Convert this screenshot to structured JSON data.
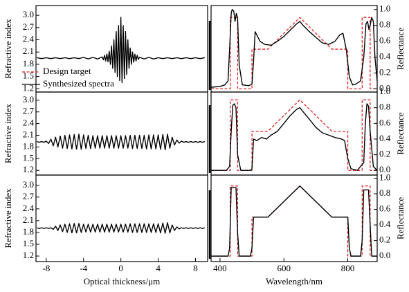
{
  "chart_data": [
    {
      "type": "line",
      "ylabel": "Refractive index",
      "xlim": [
        -9.1,
        9.3
      ],
      "ylim": [
        1.12,
        3.24
      ],
      "yticks": [
        1.2,
        1.5,
        1.8,
        2.1,
        2.4,
        2.7,
        {
          "value": 3,
          "label": "3.0"
        }
      ],
      "x": [
        -9,
        -8.5,
        -8,
        -7.5,
        -7,
        -6.5,
        -6,
        -5.5,
        -5,
        -4.5,
        -4,
        -3.5,
        -3,
        -2.5,
        -2,
        -1.875,
        -1.75,
        -1.625,
        -1.5,
        -1.375,
        -1.25,
        -1.125,
        -1,
        -0.875,
        -0.75,
        -0.625,
        -0.5,
        -0.375,
        -0.25,
        -0.125,
        0,
        0.125,
        0.25,
        0.375,
        0.5,
        0.625,
        0.75,
        0.875,
        1,
        1.125,
        1.25,
        1.375,
        1.5,
        1.625,
        1.75,
        1.875,
        2,
        2.5,
        3,
        3.5,
        4,
        4.5,
        5,
        5.5,
        6,
        6.5,
        7,
        7.5,
        8,
        8.5,
        9
      ],
      "series": [
        {
          "color": "#000000",
          "values": [
            1.96,
            1.94,
            1.96,
            1.94,
            1.96,
            1.94,
            1.96,
            1.94,
            1.96,
            1.94,
            1.97,
            1.93,
            1.97,
            1.93,
            1.98,
            1.91,
            2.02,
            1.88,
            2.05,
            1.86,
            2.12,
            1.8,
            2.25,
            1.7,
            2.4,
            1.6,
            2.6,
            1.5,
            2.75,
            1.4,
            2.95,
            1.35,
            2.75,
            1.45,
            2.6,
            1.55,
            2.4,
            1.7,
            2.2,
            1.8,
            2.1,
            1.85,
            2.05,
            1.88,
            2.02,
            1.92,
            1.97,
            1.93,
            1.97,
            1.93,
            1.96,
            1.94,
            1.96,
            1.94,
            1.96,
            1.94,
            1.96,
            1.94,
            1.96,
            1.94,
            1.96
          ]
        }
      ]
    },
    {
      "type": "line",
      "ylabel": "Reflectance",
      "xlim": [
        372,
        892
      ],
      "ylim": [
        -0.04,
        1.05
      ],
      "yticks": [
        {
          "value": 0,
          "label": "0.0"
        },
        0.2,
        0.4,
        0.6,
        0.8,
        {
          "value": 1,
          "label": "1.0"
        }
      ],
      "legend": "lower left",
      "series": [
        {
          "name": "Design target",
          "color": "#e02020",
          "style": "dashed",
          "x": [
            372,
            432,
            432,
            455,
            455,
            500,
            500,
            550,
            650,
            750,
            800,
            800,
            845,
            845,
            870,
            870,
            892
          ],
          "values": [
            0,
            0,
            0.9,
            0.9,
            0,
            0,
            0.5,
            0.5,
            0.9,
            0.5,
            0.5,
            0,
            0,
            0.9,
            0.9,
            0,
            0
          ]
        },
        {
          "name": "Synthesized spectra",
          "color": "#000000",
          "style": "solid",
          "x": [
            372,
            400,
            415,
            425,
            430,
            435,
            438,
            443,
            447,
            451,
            455,
            460,
            470,
            490,
            500,
            505,
            510,
            515,
            525,
            540,
            560,
            580,
            600,
            620,
            640,
            650,
            660,
            680,
            700,
            720,
            740,
            760,
            775,
            785,
            795,
            805,
            815,
            825,
            840,
            850,
            857,
            862,
            866,
            870,
            875,
            880,
            885,
            892
          ],
          "values": [
            0.02,
            0.03,
            0.05,
            0.1,
            0.5,
            0.95,
            1.0,
            0.98,
            0.85,
            0.95,
            0.9,
            0.3,
            0.05,
            0.04,
            0.06,
            0.35,
            0.72,
            0.68,
            0.6,
            0.56,
            0.55,
            0.6,
            0.66,
            0.74,
            0.82,
            0.85,
            0.8,
            0.72,
            0.65,
            0.58,
            0.56,
            0.6,
            0.68,
            0.7,
            0.5,
            0.15,
            0.05,
            0.06,
            0.1,
            0.4,
            0.82,
            0.85,
            0.75,
            0.8,
            0.9,
            0.85,
            0.4,
            0.1
          ]
        }
      ]
    },
    {
      "type": "line",
      "ylabel": "Refractive index",
      "xlim": [
        -9.1,
        9.3
      ],
      "ylim": [
        1.08,
        3.21
      ],
      "yticks": [
        1.2,
        1.5,
        1.8,
        2.1,
        2.4,
        2.7,
        {
          "value": 3,
          "label": "3.0"
        }
      ],
      "x": [
        -9,
        -8.75,
        -8.5,
        -8.25,
        -8,
        -7.75,
        -7.5,
        -7.25,
        -7,
        -6.75,
        -6.5,
        -6.25,
        -6,
        -5.75,
        -5.5,
        -5.25,
        -5,
        -4.75,
        -4.5,
        -4.25,
        -4,
        -3.75,
        -3.5,
        -3.25,
        -3,
        -2.75,
        -2.5,
        -2.25,
        -2,
        -1.75,
        -1.5,
        -1.25,
        -1,
        -0.75,
        -0.5,
        -0.25,
        0,
        0.25,
        0.5,
        0.75,
        1,
        1.25,
        1.5,
        1.75,
        2,
        2.25,
        2.5,
        2.75,
        3,
        3.25,
        3.5,
        3.75,
        4,
        4.25,
        4.5,
        4.75,
        5,
        5.25,
        5.5,
        5.75,
        6,
        6.25,
        6.5,
        6.75,
        7,
        7.25,
        7.5,
        7.75,
        8,
        8.25,
        8.5,
        8.75,
        9
      ],
      "series": [
        {
          "color": "#000000",
          "values": [
            1.94,
            1.92,
            1.94,
            1.92,
            1.95,
            1.89,
            2.0,
            1.83,
            2.05,
            1.8,
            2.08,
            1.77,
            2.1,
            1.76,
            2.11,
            1.75,
            2.12,
            1.74,
            2.13,
            1.74,
            2.11,
            1.76,
            2.1,
            1.76,
            2.09,
            1.77,
            2.09,
            1.77,
            2.09,
            1.77,
            2.09,
            1.77,
            2.09,
            1.77,
            2.09,
            1.77,
            2.09,
            1.77,
            2.09,
            1.77,
            2.1,
            1.76,
            2.1,
            1.76,
            2.1,
            1.76,
            2.1,
            1.75,
            2.11,
            1.75,
            2.11,
            1.75,
            2.11,
            1.74,
            2.12,
            1.73,
            2.13,
            1.77,
            2.05,
            1.85,
            1.98,
            1.9,
            1.95,
            1.92,
            1.94,
            1.92,
            1.94,
            1.92,
            1.94,
            1.92,
            1.94,
            1.92,
            1.94
          ]
        }
      ]
    },
    {
      "type": "line",
      "ylabel": "Reflectance",
      "xlim": [
        372,
        892
      ],
      "ylim": [
        -0.06,
        1.0
      ],
      "yticks": [
        {
          "value": 0,
          "label": "0.0"
        },
        0.2,
        0.4,
        0.6,
        0.8,
        {
          "value": 1,
          "label": "1.0"
        }
      ],
      "series": [
        {
          "color": "#e02020",
          "style": "dashed",
          "x": [
            372,
            432,
            432,
            455,
            455,
            500,
            500,
            550,
            650,
            750,
            800,
            800,
            845,
            845,
            870,
            870,
            892
          ],
          "values": [
            0,
            0,
            0.9,
            0.9,
            0,
            0,
            0.5,
            0.5,
            0.9,
            0.5,
            0.5,
            0,
            0,
            0.9,
            0.9,
            0,
            0
          ]
        },
        {
          "color": "#000000",
          "style": "solid",
          "x": [
            372,
            420,
            430,
            435,
            440,
            445,
            450,
            455,
            465,
            495,
            500,
            505,
            515,
            530,
            545,
            560,
            580,
            600,
            620,
            640,
            650,
            660,
            680,
            700,
            720,
            740,
            760,
            780,
            790,
            800,
            810,
            830,
            850,
            855,
            860,
            865,
            870,
            880,
            892
          ],
          "values": [
            0,
            0,
            0.05,
            0.5,
            0.83,
            0.85,
            0.8,
            0.2,
            0,
            0,
            0.02,
            0.4,
            0.38,
            0.42,
            0.4,
            0.45,
            0.5,
            0.6,
            0.7,
            0.78,
            0.8,
            0.75,
            0.65,
            0.55,
            0.48,
            0.45,
            0.42,
            0.4,
            0.38,
            0.15,
            0.02,
            0,
            0.1,
            0.6,
            0.85,
            0.82,
            0.5,
            0.05,
            0
          ]
        }
      ]
    },
    {
      "type": "line",
      "ylabel": "Refractive index",
      "xlabel": "Optical thickness/μm",
      "xlim": [
        -9.1,
        9.3
      ],
      "ylim": [
        1.06,
        3.26
      ],
      "xticks": [
        -8,
        -4,
        0,
        4,
        8
      ],
      "yticks": [
        1.2,
        1.5,
        1.8,
        2.1,
        2.4,
        2.7,
        {
          "value": 3,
          "label": "3.0"
        }
      ],
      "x": [
        -9,
        -8.75,
        -8.5,
        -8.25,
        -8,
        -7.75,
        -7.5,
        -7.25,
        -7,
        -6.75,
        -6.5,
        -6.25,
        -6,
        -5.75,
        -5.5,
        -5.25,
        -5,
        -4.75,
        -4.5,
        -4.25,
        -4,
        -3.75,
        -3.5,
        -3.25,
        -3,
        -2.75,
        -2.5,
        -2.25,
        -2,
        -1.75,
        -1.5,
        -1.25,
        -1,
        -0.75,
        -0.5,
        -0.25,
        0,
        0.25,
        0.5,
        0.75,
        1,
        1.25,
        1.5,
        1.75,
        2,
        2.25,
        2.5,
        2.75,
        3,
        3.25,
        3.5,
        3.75,
        4,
        4.25,
        4.5,
        4.75,
        5,
        5.25,
        5.5,
        5.75,
        6,
        6.25,
        6.5,
        6.75,
        7,
        7.25,
        7.5,
        7.75,
        8,
        8.25,
        8.5,
        8.75,
        9
      ],
      "series": [
        {
          "color": "#000000",
          "values": [
            1.92,
            1.9,
            1.92,
            1.9,
            1.92,
            1.9,
            1.92,
            1.88,
            1.96,
            1.85,
            1.99,
            1.82,
            2.01,
            1.8,
            2.02,
            1.79,
            2.03,
            1.79,
            2.03,
            1.8,
            2.01,
            1.81,
            2.01,
            1.81,
            2.01,
            1.81,
            2.01,
            1.81,
            2.01,
            1.81,
            2.01,
            1.81,
            2.01,
            1.81,
            2.01,
            1.81,
            2.01,
            1.81,
            2.01,
            1.81,
            2.02,
            1.8,
            2.02,
            1.8,
            2.02,
            1.8,
            2.02,
            1.8,
            2.02,
            1.8,
            2.02,
            1.8,
            2.02,
            1.79,
            2.04,
            1.78,
            2.05,
            1.79,
            1.99,
            1.85,
            1.94,
            1.89,
            1.92,
            1.9,
            1.92,
            1.9,
            1.92,
            1.9,
            1.92,
            1.9,
            1.92,
            1.9,
            1.92
          ]
        }
      ]
    },
    {
      "type": "line",
      "ylabel": "Reflectance",
      "xlabel": "Wavelength/nm",
      "xlim": [
        372,
        892
      ],
      "ylim": [
        -0.07,
        1.04
      ],
      "xticks": [
        400,
        600,
        800
      ],
      "yticks": [
        {
          "value": 0,
          "label": "0.0"
        },
        0.2,
        0.4,
        0.6,
        0.8,
        {
          "value": 1,
          "label": "1.0"
        }
      ],
      "series": [
        {
          "color": "#e02020",
          "style": "dashed",
          "x": [
            372,
            432,
            432,
            455,
            455,
            500,
            500,
            550,
            650,
            750,
            800,
            800,
            845,
            845,
            870,
            870,
            892
          ],
          "values": [
            0,
            0,
            0.9,
            0.9,
            0,
            0,
            0.5,
            0.5,
            0.9,
            0.5,
            0.5,
            0,
            0,
            0.9,
            0.9,
            0,
            0
          ]
        },
        {
          "color": "#000000",
          "style": "solid",
          "x": [
            372,
            425,
            430,
            435,
            450,
            455,
            460,
            495,
            500,
            505,
            550,
            650,
            750,
            800,
            805,
            810,
            840,
            845,
            850,
            865,
            870,
            875,
            892
          ],
          "values": [
            0,
            0,
            0.1,
            0.88,
            0.88,
            0.3,
            0,
            0,
            0.1,
            0.5,
            0.5,
            0.9,
            0.5,
            0.5,
            0.1,
            0,
            0,
            0.2,
            0.85,
            0.85,
            0.4,
            0,
            0
          ]
        }
      ]
    }
  ]
}
